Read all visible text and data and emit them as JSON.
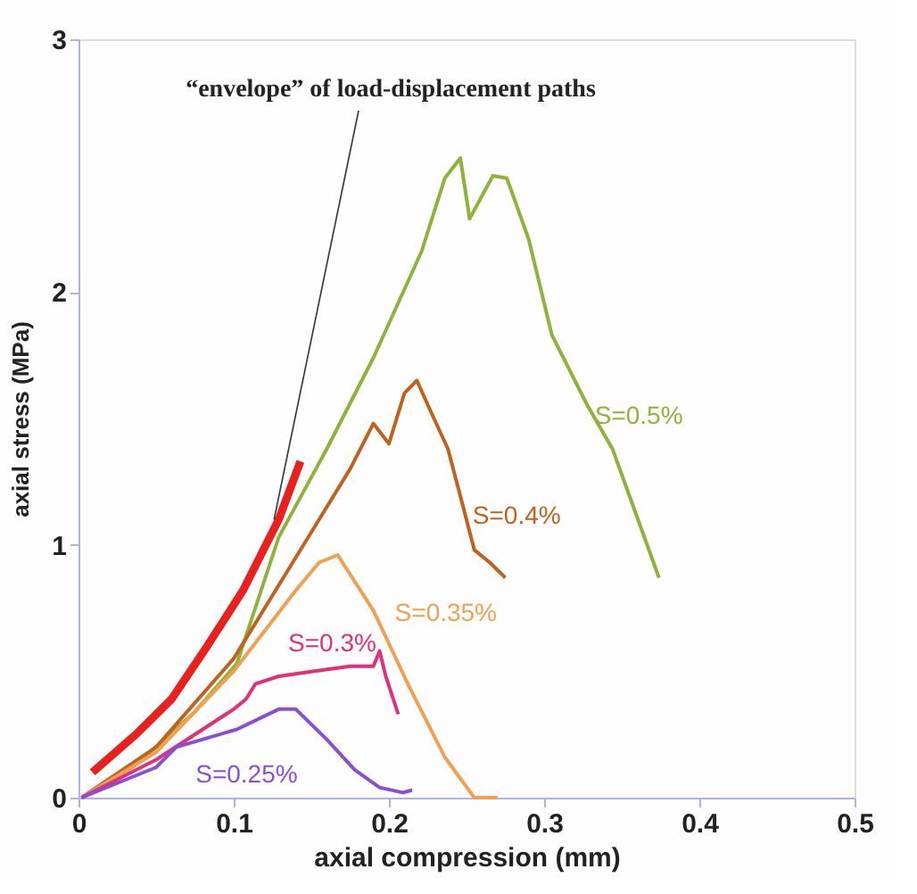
{
  "chart_data": {
    "type": "line",
    "xlabel": "axial compression (mm)",
    "ylabel": "axial stress (MPa)",
    "xlim": [
      0,
      0.5
    ],
    "ylim": [
      0,
      3
    ],
    "xticks": [
      0,
      0.1,
      0.2,
      0.3,
      0.4,
      {
        "value": 0.5,
        "label": "0.5"
      }
    ],
    "yticks": [
      0,
      1,
      2,
      3
    ],
    "grid": false,
    "legend": false,
    "marker": "none",
    "line_style": "solid",
    "annotations": [
      {
        "text": "“envelope” of load-displacement paths",
        "x": 0.126,
        "y": 1.1
      }
    ],
    "series": [
      {
        "color": "#e8201e",
        "x": [
          0.009,
          0.037,
          0.06,
          0.083,
          0.106,
          0.129,
          0.143
        ],
        "values": [
          0.1,
          0.25,
          0.39,
          0.6,
          0.82,
          1.1,
          1.33
        ]
      },
      {
        "name": "S=0.5%",
        "color": "#8db33a",
        "x": [
          0.002,
          0.037,
          0.075,
          0.102,
          0.129,
          0.16,
          0.19,
          0.221,
          0.236,
          0.246,
          0.252,
          0.267,
          0.276,
          0.29,
          0.305,
          0.328,
          0.344,
          0.374
        ],
        "values": [
          0,
          0.13,
          0.34,
          0.53,
          1.03,
          1.38,
          1.74,
          2.16,
          2.45,
          2.53,
          2.29,
          2.46,
          2.45,
          2.21,
          1.83,
          1.55,
          1.38,
          0.87
        ]
      },
      {
        "name": "S=0.4%",
        "color": "#c0621e",
        "x": [
          0.002,
          0.05,
          0.1,
          0.15,
          0.175,
          0.19,
          0.2,
          0.21,
          0.218,
          0.229,
          0.238,
          0.247,
          0.255,
          0.265,
          0.275
        ],
        "values": [
          0,
          0.2,
          0.55,
          1.05,
          1.3,
          1.48,
          1.4,
          1.6,
          1.65,
          1.5,
          1.38,
          1.17,
          0.98,
          0.93,
          0.87
        ]
      },
      {
        "name": "S=0.35%",
        "color": "#f0a050",
        "x": [
          0.002,
          0.05,
          0.1,
          0.14,
          0.155,
          0.167,
          0.19,
          0.213,
          0.236,
          0.255,
          0.27
        ],
        "values": [
          0,
          0.18,
          0.5,
          0.82,
          0.93,
          0.96,
          0.74,
          0.44,
          0.16,
          0,
          0
        ]
      },
      {
        "name": "S=0.3%",
        "color": "#e0307a",
        "x": [
          0.002,
          0.05,
          0.1,
          0.108,
          0.114,
          0.129,
          0.152,
          0.175,
          0.19,
          0.194,
          0.198,
          0.206
        ],
        "values": [
          0,
          0.15,
          0.35,
          0.39,
          0.45,
          0.48,
          0.5,
          0.52,
          0.52,
          0.58,
          0.48,
          0.33
        ]
      },
      {
        "name": "S=0.25%",
        "color": "#8a4fd0",
        "x": [
          0.002,
          0.05,
          0.063,
          0.102,
          0.129,
          0.14,
          0.16,
          0.178,
          0.194,
          0.209,
          0.215
        ],
        "values": [
          0,
          0.12,
          0.2,
          0.27,
          0.35,
          0.35,
          0.23,
          0.11,
          0.04,
          0.02,
          0.03
        ]
      }
    ]
  }
}
